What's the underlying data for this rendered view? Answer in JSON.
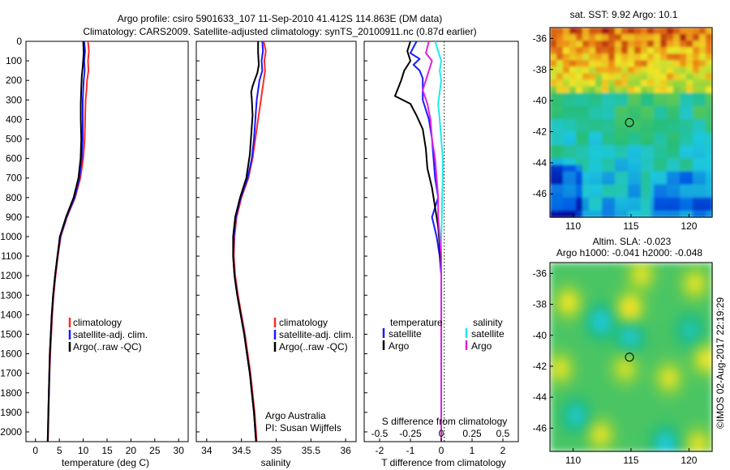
{
  "header": {
    "line1": "Argo profile: csiro 5901633_107 11-Sep-2010 41.412S 114.863E (DM data)",
    "line2": "Climatology: CARS2009. Satellite-adjusted climatology: synTS_20100911.nc (0.87d earlier)"
  },
  "colors": {
    "climatology": "#ff2a2a",
    "satellite_clim": "#1a1aff",
    "argo": "#000000",
    "salinity_satellite": "#22e8e8",
    "salinity_argo": "#e020e0"
  },
  "depth_axis": {
    "ticks": [
      "0",
      "100",
      "200",
      "300",
      "400",
      "500",
      "600",
      "700",
      "800",
      "900",
      "1000",
      "1100",
      "1200",
      "1300",
      "1400",
      "1500",
      "1600",
      "1700",
      "1800",
      "1900",
      "2000"
    ]
  },
  "chart_data": [
    {
      "type": "line",
      "id": "temperature",
      "xlabel": "temperature (deg C)",
      "xticks": [
        "0",
        "5",
        "10",
        "15",
        "20",
        "25",
        "30"
      ],
      "xlim": [
        -2,
        32
      ],
      "ylim": [
        2050,
        0
      ],
      "legend": [
        "climatology",
        "satellite-adj. clim.",
        "Argo(..raw -QC)"
      ],
      "series": [
        {
          "name": "climatology",
          "color": "#ff2a2a",
          "points": [
            [
              11.0,
              0
            ],
            [
              11.2,
              50
            ],
            [
              11.0,
              100
            ],
            [
              11.1,
              150
            ],
            [
              10.8,
              200
            ],
            [
              10.7,
              250
            ],
            [
              10.5,
              300
            ],
            [
              10.4,
              400
            ],
            [
              10.3,
              500
            ],
            [
              10.0,
              600
            ],
            [
              9.4,
              700
            ],
            [
              8.3,
              800
            ],
            [
              6.6,
              900
            ],
            [
              5.3,
              1000
            ],
            [
              4.7,
              1100
            ],
            [
              4.2,
              1200
            ],
            [
              3.8,
              1300
            ],
            [
              3.5,
              1400
            ],
            [
              3.3,
              1500
            ],
            [
              3.1,
              1600
            ],
            [
              2.95,
              1700
            ],
            [
              2.85,
              1800
            ],
            [
              2.75,
              1900
            ],
            [
              2.65,
              2000
            ],
            [
              2.6,
              2050
            ]
          ]
        },
        {
          "name": "satellite-adj. clim.",
          "color": "#1a1aff",
          "points": [
            [
              10.2,
              0
            ],
            [
              10.4,
              50
            ],
            [
              10.2,
              100
            ],
            [
              10.3,
              150
            ],
            [
              10.1,
              200
            ],
            [
              10.0,
              250
            ],
            [
              9.9,
              300
            ],
            [
              9.9,
              400
            ],
            [
              9.9,
              500
            ],
            [
              9.7,
              600
            ],
            [
              9.2,
              700
            ],
            [
              8.2,
              800
            ],
            [
              6.5,
              900
            ],
            [
              5.2,
              1000
            ],
            [
              4.6,
              1100
            ],
            [
              4.1,
              1200
            ],
            [
              3.7,
              1300
            ],
            [
              3.4,
              1400
            ],
            [
              3.2,
              1500
            ],
            [
              3.0,
              1600
            ],
            [
              2.9,
              1700
            ],
            [
              2.8,
              1800
            ],
            [
              2.7,
              1900
            ],
            [
              2.6,
              2000
            ],
            [
              2.55,
              2050
            ]
          ]
        },
        {
          "name": "Argo(..raw -QC)",
          "color": "#000000",
          "points": [
            [
              10.0,
              0
            ],
            [
              10.1,
              60
            ],
            [
              9.9,
              130
            ],
            [
              9.7,
              180
            ],
            [
              9.6,
              240
            ],
            [
              9.55,
              280
            ],
            [
              9.5,
              320
            ],
            [
              9.5,
              400
            ],
            [
              9.6,
              500
            ],
            [
              9.45,
              600
            ],
            [
              9.0,
              700
            ],
            [
              8.0,
              800
            ],
            [
              6.4,
              900
            ],
            [
              5.1,
              1000
            ],
            [
              4.6,
              1100
            ],
            [
              4.1,
              1200
            ],
            [
              3.7,
              1300
            ],
            [
              3.4,
              1400
            ],
            [
              3.2,
              1500
            ],
            [
              3.0,
              1600
            ],
            [
              2.9,
              1700
            ],
            [
              2.8,
              1800
            ],
            [
              2.7,
              1900
            ],
            [
              2.6,
              2000
            ],
            [
              2.55,
              2050
            ]
          ]
        }
      ]
    },
    {
      "type": "line",
      "id": "salinity",
      "xlabel": "salinity",
      "xticks": [
        "34",
        "34.5",
        "35",
        "35.5",
        "36"
      ],
      "xlim": [
        33.85,
        36.15
      ],
      "ylim": [
        2050,
        0
      ],
      "legend": [
        "climatology",
        "satellite-adj. clim.",
        "Argo(..raw -QC)"
      ],
      "annotation": [
        "Argo Australia",
        "PI: Susan Wijffels"
      ],
      "series": [
        {
          "name": "climatology",
          "color": "#ff2a2a",
          "points": [
            [
              34.82,
              0
            ],
            [
              34.85,
              50
            ],
            [
              34.83,
              100
            ],
            [
              34.84,
              150
            ],
            [
              34.82,
              200
            ],
            [
              34.8,
              250
            ],
            [
              34.78,
              300
            ],
            [
              34.74,
              400
            ],
            [
              34.7,
              500
            ],
            [
              34.66,
              600
            ],
            [
              34.6,
              700
            ],
            [
              34.5,
              800
            ],
            [
              34.43,
              900
            ],
            [
              34.4,
              1000
            ],
            [
              34.39,
              1100
            ],
            [
              34.41,
              1200
            ],
            [
              34.45,
              1300
            ],
            [
              34.5,
              1400
            ],
            [
              34.55,
              1500
            ],
            [
              34.59,
              1600
            ],
            [
              34.63,
              1700
            ],
            [
              34.66,
              1800
            ],
            [
              34.69,
              1900
            ],
            [
              34.71,
              2000
            ],
            [
              34.72,
              2050
            ]
          ]
        },
        {
          "name": "satellite-adj. clim.",
          "color": "#1a1aff",
          "points": [
            [
              34.8,
              0
            ],
            [
              34.81,
              50
            ],
            [
              34.79,
              100
            ],
            [
              34.8,
              150
            ],
            [
              34.76,
              200
            ],
            [
              34.74,
              250
            ],
            [
              34.72,
              300
            ],
            [
              34.7,
              400
            ],
            [
              34.68,
              500
            ],
            [
              34.65,
              600
            ],
            [
              34.59,
              700
            ],
            [
              34.49,
              800
            ],
            [
              34.42,
              900
            ],
            [
              34.39,
              1000
            ],
            [
              34.38,
              1100
            ],
            [
              34.4,
              1200
            ],
            [
              34.44,
              1300
            ],
            [
              34.49,
              1400
            ],
            [
              34.54,
              1500
            ],
            [
              34.58,
              1600
            ],
            [
              34.62,
              1700
            ],
            [
              34.65,
              1800
            ],
            [
              34.68,
              1900
            ],
            [
              34.7,
              2000
            ],
            [
              34.71,
              2050
            ]
          ]
        },
        {
          "name": "Argo(..raw -QC)",
          "color": "#000000",
          "points": [
            [
              34.74,
              0
            ],
            [
              34.74,
              60
            ],
            [
              34.75,
              120
            ],
            [
              34.73,
              160
            ],
            [
              34.69,
              200
            ],
            [
              34.66,
              230
            ],
            [
              34.64,
              260
            ],
            [
              34.65,
              300
            ],
            [
              34.66,
              380
            ],
            [
              34.64,
              480
            ],
            [
              34.62,
              580
            ],
            [
              34.57,
              700
            ],
            [
              34.48,
              800
            ],
            [
              34.41,
              900
            ],
            [
              34.38,
              1000
            ],
            [
              34.38,
              1100
            ],
            [
              34.4,
              1200
            ],
            [
              34.44,
              1300
            ],
            [
              34.49,
              1400
            ],
            [
              34.54,
              1500
            ],
            [
              34.58,
              1600
            ],
            [
              34.62,
              1700
            ],
            [
              34.65,
              1800
            ],
            [
              34.68,
              1900
            ],
            [
              34.7,
              2000
            ],
            [
              34.71,
              2050
            ]
          ]
        }
      ]
    },
    {
      "type": "line",
      "id": "difference",
      "xlabel": "T difference from climatology",
      "xlabel_top": "S difference from climatology",
      "xticks": [
        "-2",
        "-1",
        "0",
        "1",
        "2"
      ],
      "xticks_top": [
        "-0.5",
        "-0.25",
        "0",
        "0.25",
        "0.5"
      ],
      "xlim": [
        -2.5,
        2.5
      ],
      "ylim": [
        2050,
        0
      ],
      "legend_left_title": "temperature",
      "legend_right_title": "salinity",
      "legend": [
        "satellite",
        "Argo",
        "satellite",
        "Argo"
      ],
      "series": [
        {
          "name": "temperature satellite",
          "color": "#1a1aff",
          "points": [
            [
              -0.8,
              0
            ],
            [
              -1.0,
              60
            ],
            [
              -0.7,
              90
            ],
            [
              -0.9,
              120
            ],
            [
              -0.7,
              150
            ],
            [
              -0.6,
              190
            ],
            [
              -0.6,
              300
            ],
            [
              -0.4,
              400
            ],
            [
              -0.3,
              500
            ],
            [
              -0.25,
              600
            ],
            [
              -0.2,
              700
            ],
            [
              -0.1,
              800
            ],
            [
              -0.3,
              900
            ],
            [
              -0.15,
              1000
            ],
            [
              -0.05,
              1100
            ],
            [
              0,
              1200
            ],
            [
              0,
              2050
            ]
          ]
        },
        {
          "name": "temperature Argo",
          "color": "#000000",
          "points": [
            [
              -1.0,
              0
            ],
            [
              -1.1,
              50
            ],
            [
              -1.0,
              100
            ],
            [
              -1.2,
              150
            ],
            [
              -1.3,
              200
            ],
            [
              -1.5,
              280
            ],
            [
              -1.0,
              320
            ],
            [
              -0.8,
              380
            ],
            [
              -0.6,
              450
            ],
            [
              -0.5,
              550
            ],
            [
              -0.45,
              650
            ],
            [
              -0.3,
              750
            ],
            [
              -0.2,
              850
            ],
            [
              -0.1,
              950
            ],
            [
              -0.05,
              1050
            ],
            [
              0,
              1150
            ],
            [
              0,
              2050
            ]
          ]
        },
        {
          "name": "salinity satellite",
          "color": "#22e8e8",
          "points": [
            [
              -0.2,
              0
            ],
            [
              -0.1,
              50
            ],
            [
              0.0,
              100
            ],
            [
              -0.05,
              150
            ],
            [
              0,
              200
            ],
            [
              -0.05,
              260
            ],
            [
              -0.1,
              320
            ],
            [
              -0.05,
              400
            ],
            [
              0,
              500
            ],
            [
              0.05,
              600
            ],
            [
              0.05,
              700
            ],
            [
              0.03,
              800
            ],
            [
              0.02,
              900
            ],
            [
              0,
              1000
            ],
            [
              0,
              2050
            ]
          ]
        },
        {
          "name": "salinity Argo",
          "color": "#e020e0",
          "points": [
            [
              -0.4,
              0
            ],
            [
              -0.5,
              60
            ],
            [
              -0.3,
              100
            ],
            [
              -0.4,
              150
            ],
            [
              -0.5,
              200
            ],
            [
              -0.6,
              250
            ],
            [
              -0.45,
              320
            ],
            [
              -0.35,
              400
            ],
            [
              -0.3,
              500
            ],
            [
              -0.2,
              600
            ],
            [
              -0.15,
              700
            ],
            [
              -0.1,
              800
            ],
            [
              -0.1,
              900
            ],
            [
              -0.05,
              1000
            ],
            [
              0,
              1100
            ],
            [
              0,
              2050
            ]
          ]
        }
      ]
    },
    {
      "type": "heatmap",
      "id": "sst_map",
      "title": "sat. SST: 9.92 Argo: 10.1",
      "xticks": [
        "110",
        "115",
        "120"
      ],
      "yticks": [
        "-36",
        "-38",
        "-40",
        "-42",
        "-44",
        "-46"
      ],
      "xlim": [
        108,
        122
      ],
      "ylim": [
        -47.5,
        -35.3
      ],
      "marker": [
        114.863,
        -41.412
      ]
    },
    {
      "type": "heatmap",
      "id": "sla_map",
      "title1": "Altim. SLA: -0.023",
      "title2": "Argo h1000: -0.041 h2000: -0.048",
      "xticks": [
        "110",
        "115",
        "120"
      ],
      "yticks": [
        "-36",
        "-38",
        "-40",
        "-42",
        "-44",
        "-46"
      ],
      "xlim": [
        108,
        122
      ],
      "ylim": [
        -47.5,
        -35.3
      ],
      "marker": [
        114.863,
        -41.412
      ]
    }
  ],
  "footer": {
    "stamp": "©IMOS 02-Aug-2017 22:19:29"
  }
}
